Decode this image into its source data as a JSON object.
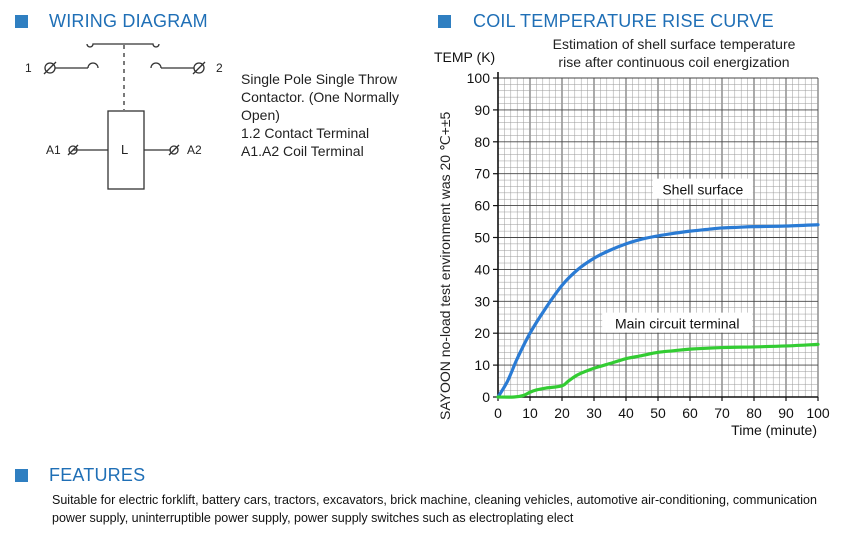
{
  "wiring": {
    "heading": "WIRING DIAGRAM",
    "terminal_1": "1",
    "terminal_2": "2",
    "terminal_a1": "A1",
    "terminal_a2": "A2",
    "coil_label": "L",
    "description": [
      "Single Pole Single Throw",
      "Contactor. (One Normally",
      "Open)",
      "1.2 Contact Terminal",
      "A1.A2 Coil Terminal"
    ]
  },
  "curve": {
    "heading": "COIL TEMPERATURE RISE CURVE"
  },
  "chart_data": {
    "type": "line",
    "title": "Estimation of shell surface temperature rise after continuous coil energization",
    "title_lines": [
      "Estimation of shell surface temperature",
      "rise after continuous coil energization"
    ],
    "ylabel": "TEMP (K)",
    "xlabel": "Time (minute)",
    "side_note": "SAYOON no-load test environment was 20 ℃+±5",
    "xlim": [
      0,
      100
    ],
    "ylim": [
      0,
      100
    ],
    "xticks": [
      0,
      10,
      20,
      30,
      40,
      50,
      60,
      70,
      80,
      90,
      100
    ],
    "yticks": [
      0,
      10,
      20,
      30,
      40,
      50,
      60,
      70,
      80,
      90,
      100
    ],
    "series": [
      {
        "name": "Shell surface",
        "color": "#2a7bd4",
        "x": [
          0,
          3,
          6,
          10,
          15,
          20,
          25,
          30,
          35,
          40,
          45,
          50,
          55,
          60,
          65,
          70,
          75,
          80,
          90,
          100
        ],
        "y": [
          0,
          5,
          12,
          20,
          28,
          35,
          40,
          43.5,
          46,
          48,
          49.5,
          50.5,
          51.3,
          52,
          52.5,
          53,
          53.2,
          53.4,
          53.6,
          54
        ]
      },
      {
        "name": "Main circuit terminal",
        "color": "#33cc33",
        "x": [
          0,
          5,
          8,
          10,
          12,
          15,
          20,
          22,
          25,
          30,
          35,
          40,
          45,
          50,
          55,
          60,
          70,
          80,
          90,
          100
        ],
        "y": [
          0,
          0,
          0.5,
          1.5,
          2.2,
          2.8,
          3.5,
          5,
          7,
          9,
          10.5,
          12,
          13,
          14,
          14.5,
          15,
          15.5,
          15.7,
          16,
          16.5
        ]
      }
    ]
  },
  "features": {
    "heading": "FEATURES",
    "text": "Suitable for electric forklift, battery cars, tractors, excavators, brick machine, cleaning vehicles, automotive air-conditioning, communication power supply, uninterruptible power supply, power supply switches such as electroplating elect"
  }
}
